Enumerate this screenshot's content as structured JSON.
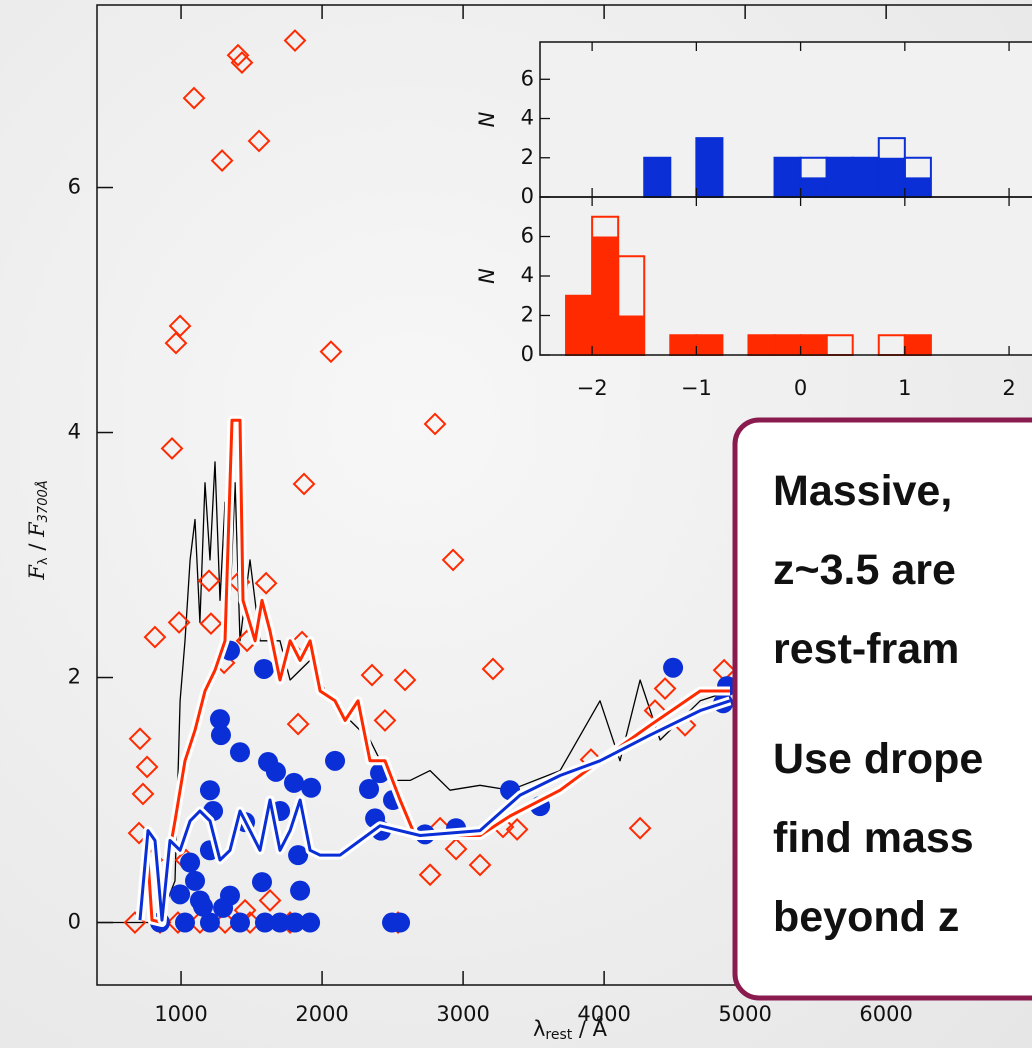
{
  "chart_data": [
    {
      "type": "scatter",
      "xlabel": {
        "symbol": "λ",
        "sub": "rest",
        "rest": " / Å"
      },
      "ylabel": {
        "f1": "F",
        "sub1": "λ",
        "sep": " / ",
        "f2": "F",
        "sub2": "3700Å"
      },
      "xlim": [
        404,
        7020
      ],
      "ylim": [
        -0.51,
        7.49
      ],
      "xticks": [
        1000,
        2000,
        3000,
        4000,
        5000,
        6000
      ],
      "yticks": [
        0,
        2,
        4,
        6
      ],
      "grid": false,
      "series": [
        {
          "marker": "none",
          "color": "#000000",
          "halo": false,
          "x": [
            404,
            780,
            851,
            957,
            993,
            1028,
            1064,
            1099,
            1134,
            1170,
            1205,
            1241,
            1276,
            1312,
            1347,
            1383,
            1418,
            1489,
            1560,
            1702,
            1773,
            1915,
            2057,
            2198,
            2340,
            2482,
            2624,
            2766,
            2907,
            3120,
            3333,
            3688,
            3971,
            4113,
            4255,
            4397,
            4681,
            4893
          ],
          "values": [
            0,
            0,
            0.03,
            0.34,
            1.81,
            2.3,
            2.96,
            3.29,
            2.45,
            3.59,
            2.96,
            3.76,
            2.63,
            3.43,
            2.63,
            3.59,
            2.3,
            2.96,
            2.3,
            2.3,
            1.98,
            2.14,
            1.81,
            1.65,
            1.49,
            1.16,
            1.16,
            1.24,
            1.08,
            1.12,
            1.08,
            1.24,
            1.81,
            1.32,
            1.98,
            1.49,
            1.81,
            1.89
          ]
        },
        {
          "marker": "diamond",
          "color": "#ff2a00",
          "x": [
            1808,
            1404,
            1432,
            1092,
            1291,
            1553,
            993,
            964,
            2063,
            936,
            2801,
            1872,
            2929,
            3212,
            2588,
            2354,
            2446,
            1830,
            815,
            986,
            1212,
            1198,
            1411,
            1603,
            709,
            759,
            730,
            702,
            794,
            1035,
            2837,
            4255,
            2950,
            3120,
            2766,
            3283,
            3383,
            3907,
            4432,
            4574,
            4361,
            4851,
            673,
            851,
            978,
            1134,
            1312,
            1489,
            1773,
            1631,
            1454,
            2539,
            1305,
            1468,
            1858
          ],
          "values": [
            7.2,
            7.08,
            7.02,
            6.73,
            6.22,
            6.38,
            4.87,
            4.73,
            4.66,
            3.87,
            4.07,
            3.58,
            2.96,
            2.07,
            1.98,
            2.02,
            1.65,
            1.62,
            2.33,
            2.45,
            2.44,
            2.79,
            2.78,
            2.77,
            1.5,
            1.27,
            1.05,
            0.73,
            0.51,
            0.51,
            0.77,
            0.77,
            0.6,
            0.47,
            0.39,
            0.78,
            0.76,
            1.33,
            1.91,
            1.61,
            1.73,
            2.06,
            0,
            0,
            0,
            0,
            0,
            0,
            0,
            0.18,
            0.1,
            0,
            2.12,
            2.3,
            2.29
          ]
        },
        {
          "marker": "circle",
          "color": "#0a2fd6",
          "x": [
            1347,
            1588,
            1276,
            1283,
            1418,
            1617,
            1673,
            1801,
            1922,
            2092,
            2411,
            2333,
            2503,
            2376,
            2418,
            2730,
            2950,
            3333,
            3546,
            4489,
            4872,
            4844,
            1205,
            1227,
            1454,
            1702,
            1205,
            1064,
            1099,
            993,
            1134,
            1347,
            1574,
            1830,
            1844,
            851,
            1028,
            1205,
            1418,
            1595,
            1702,
            1808,
            1915,
            2496,
            2553,
            1298,
            1156
          ],
          "values": [
            2.22,
            2.07,
            1.66,
            1.53,
            1.39,
            1.31,
            1.23,
            1.14,
            1.1,
            1.32,
            1.22,
            1.09,
            1.0,
            0.85,
            0.75,
            0.72,
            0.77,
            1.08,
            0.95,
            2.08,
            1.93,
            1.79,
            1.08,
            0.91,
            0.82,
            0.91,
            0.59,
            0.49,
            0.34,
            0.23,
            0.18,
            0.22,
            0.33,
            0.55,
            0.26,
            0,
            0,
            0,
            0,
            0,
            0,
            0,
            0,
            0,
            0,
            0.12,
            0.13
          ]
        },
        {
          "marker": "none",
          "color": "#ff2a00",
          "halo": true,
          "x": [
            709,
            766,
            794,
            865,
            908,
            957,
            1028,
            1099,
            1170,
            1241,
            1312,
            1361,
            1418,
            1439,
            1525,
            1574,
            1631,
            1702,
            1773,
            1844,
            1915,
            1986,
            2092,
            2163,
            2255,
            2340,
            2446,
            2553,
            2659,
            2907,
            3120,
            3333,
            3688,
            3971,
            4326,
            4681,
            4893
          ],
          "values": [
            0.02,
            0.51,
            0.02,
            0,
            0.51,
            0.83,
            1.32,
            1.57,
            1.89,
            2.06,
            2.3,
            4.1,
            4.1,
            2.63,
            2.3,
            2.63,
            2.38,
            1.98,
            2.3,
            2.14,
            2.3,
            1.89,
            1.81,
            1.65,
            1.81,
            1.32,
            1.32,
            1.0,
            0.71,
            0.71,
            0.71,
            0.87,
            1.08,
            1.32,
            1.61,
            1.89,
            1.89
          ]
        },
        {
          "marker": "none",
          "color": "#0a2fd6",
          "halo": true,
          "x": [
            709,
            766,
            815,
            865,
            922,
            993,
            1064,
            1134,
            1205,
            1276,
            1347,
            1418,
            1489,
            1560,
            1631,
            1702,
            1773,
            1844,
            1915,
            1986,
            2128,
            2269,
            2411,
            2695,
            3120,
            3404,
            3688,
            3971,
            4326,
            4681,
            4893
          ],
          "values": [
            0.02,
            0.75,
            0.67,
            0.02,
            0.67,
            0.59,
            0.83,
            0.91,
            0.83,
            0.51,
            0.59,
            0.91,
            0.75,
            0.59,
            1.0,
            0.59,
            0.75,
            1.0,
            0.59,
            0.55,
            0.55,
            0.67,
            0.79,
            0.71,
            0.75,
            1.04,
            1.2,
            1.32,
            1.53,
            1.73,
            1.81
          ]
        }
      ]
    },
    {
      "type": "histogram",
      "ylabel": "N",
      "xlim": [
        -2.5,
        2.22
      ],
      "ylim": [
        0,
        7.9
      ],
      "xticks": [
        -2,
        -1,
        0,
        1,
        2
      ],
      "yticks": [
        0,
        2,
        4,
        6
      ],
      "bins": [
        -2.25,
        -2,
        -1.75,
        -1.5,
        -1.25,
        -1,
        -0.75,
        -0.5,
        -0.25,
        0,
        0.25,
        0.5,
        0.75,
        1,
        1.25
      ],
      "series": [
        {
          "color": "#0a2fd6",
          "filled": true,
          "values": [
            0,
            0,
            0,
            2,
            0,
            3,
            0,
            0,
            2,
            1,
            2,
            2,
            2,
            1
          ]
        },
        {
          "color": "#0a2fd6",
          "filled": false,
          "values": [
            0,
            0,
            0,
            2,
            0,
            3,
            0,
            0,
            2,
            2,
            2,
            2,
            3,
            2
          ]
        }
      ]
    },
    {
      "type": "histogram",
      "ylabel": "N",
      "xlim": [
        -2.5,
        2.22
      ],
      "ylim": [
        0,
        8.0
      ],
      "xticks": [
        {
          "value": -2,
          "label": "−2"
        },
        {
          "value": -1,
          "label": "−1"
        },
        0,
        1,
        2
      ],
      "yticks": [
        0,
        2,
        4,
        6
      ],
      "bins": [
        -2.25,
        -2,
        -1.75,
        -1.5,
        -1.25,
        -1,
        -0.75,
        -0.5,
        -0.25,
        0,
        0.25,
        0.5,
        0.75,
        1,
        1.25
      ],
      "series": [
        {
          "color": "#ff2a00",
          "filled": true,
          "values": [
            3,
            6,
            2,
            0,
            1,
            1,
            0,
            1,
            1,
            1,
            0,
            0,
            0,
            1
          ]
        },
        {
          "color": "#ff2a00",
          "filled": false,
          "values": [
            3,
            7,
            5,
            0,
            1,
            1,
            0,
            1,
            1,
            1,
            1,
            0,
            1,
            1
          ]
        }
      ]
    }
  ],
  "annotation": {
    "lines": [
      "Massive,",
      "z~3.5 are",
      "rest-fram",
      "Use drope",
      "find mass",
      "beyond z"
    ]
  }
}
